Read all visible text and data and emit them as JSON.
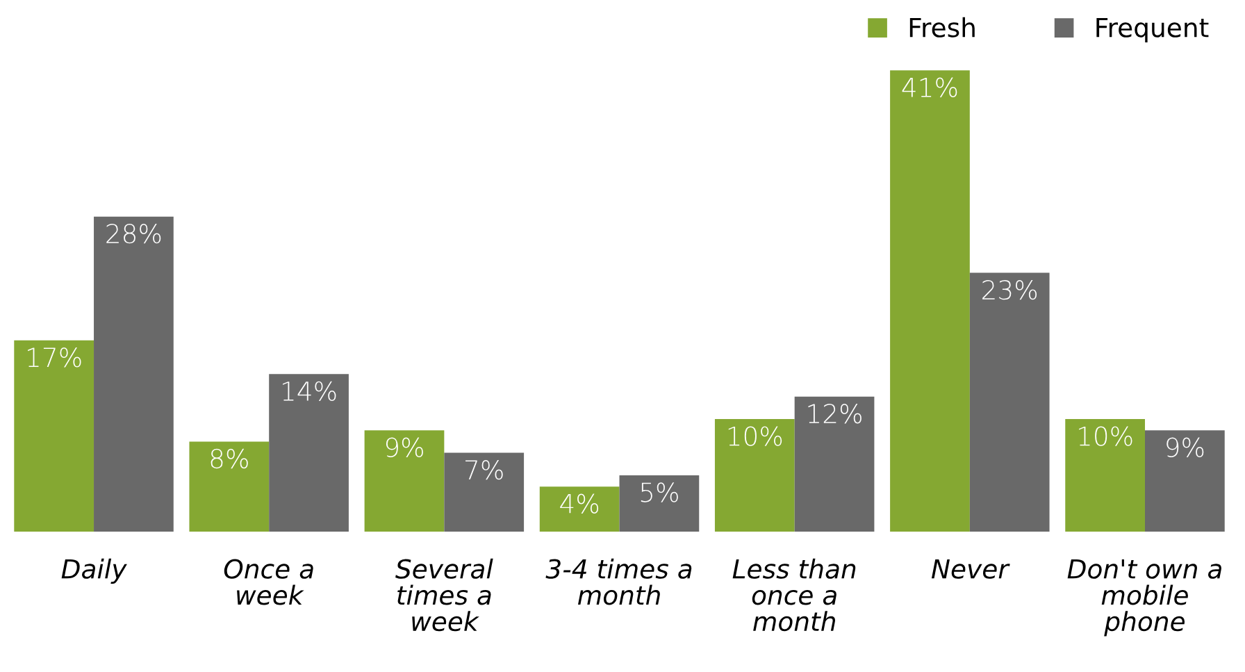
{
  "chart_data": {
    "type": "bar",
    "categories": [
      "Daily",
      "Once a\nweek",
      "Several\ntimes a\nweek",
      "3-4 times a\nmonth",
      "Less than\nonce a\nmonth",
      "Never",
      "Don't own a\nmobile\nphone"
    ],
    "series": [
      {
        "name": "Fresh",
        "color": "#85a832",
        "values": [
          17,
          8,
          9,
          4,
          10,
          41,
          10
        ],
        "value_labels": [
          "17%",
          "8%",
          "9%",
          "4%",
          "10%",
          "41%",
          "10%"
        ]
      },
      {
        "name": "Frequent",
        "color": "#696969",
        "values": [
          28,
          14,
          7,
          5,
          12,
          23,
          9
        ],
        "value_labels": [
          "28%",
          "14%",
          "7%",
          "5%",
          "12%",
          "23%",
          "9%"
        ]
      }
    ],
    "legend": "top right",
    "grid": false
  }
}
